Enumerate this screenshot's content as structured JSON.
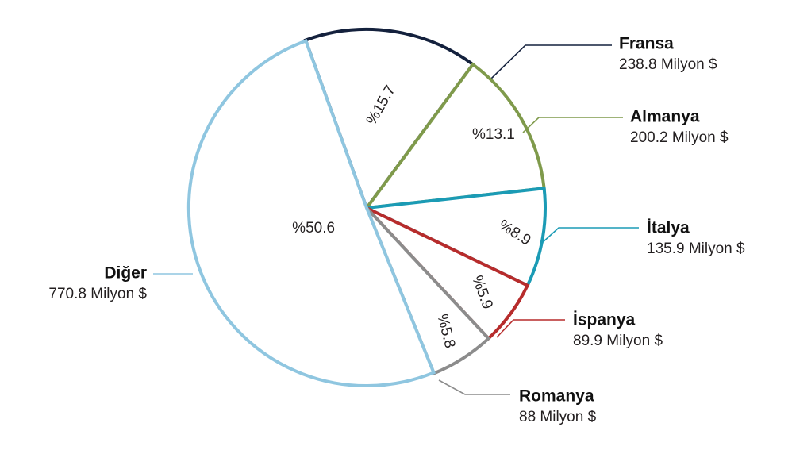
{
  "chart_data": {
    "type": "pie",
    "title": "",
    "legend": "none",
    "slices": [
      {
        "name": "Fransa",
        "percent": 15.7,
        "percent_label": "%15.7",
        "value": 238.8,
        "value_label": "238.8 Milyon $",
        "color": "#14213d"
      },
      {
        "name": "Almanya",
        "percent": 13.1,
        "percent_label": "%13.1",
        "value": 200.2,
        "value_label": "200.2 Milyon $",
        "color": "#7f9a4b"
      },
      {
        "name": "İtalya",
        "percent": 8.9,
        "percent_label": "%8.9",
        "value": 135.9,
        "value_label": "135.9 Milyon $",
        "color": "#1b9bb5"
      },
      {
        "name": "İspanya",
        "percent": 5.9,
        "percent_label": "%5.9",
        "value": 89.9,
        "value_label": "89.9 Milyon $",
        "color": "#b72c2c"
      },
      {
        "name": "Romanya",
        "percent": 5.8,
        "percent_label": "%5.8",
        "value": 88,
        "value_label": "88 Milyon $",
        "color": "#8c8c8c"
      },
      {
        "name": "Diğer",
        "percent": 50.6,
        "percent_label": "%50.6",
        "value": 770.8,
        "value_label": "770.8 Milyon $",
        "color": "#8fc6e0"
      }
    ]
  }
}
